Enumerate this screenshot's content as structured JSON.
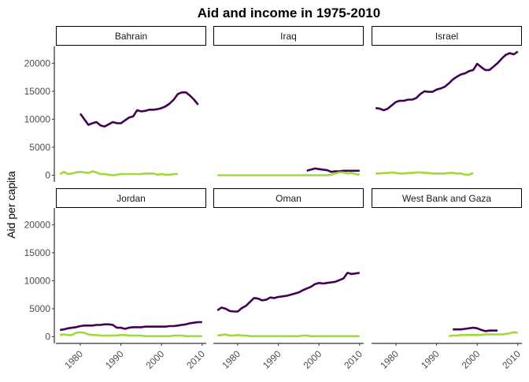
{
  "chart_data": {
    "type": "line",
    "title": "Aid and income in 1975-2010",
    "xlabel": "",
    "ylabel": "Aid per capita",
    "xlim": [
      1974,
      2011
    ],
    "ylim": [
      -1200,
      23000
    ],
    "x_ticks": [
      1980,
      1990,
      2000,
      2010
    ],
    "y_ticks": [
      0,
      5000,
      10000,
      15000,
      20000
    ],
    "grid": false,
    "legend": "none",
    "series_colors": [
      "#440154",
      "#a0da39"
    ],
    "panels": [
      {
        "name": "Bahrain",
        "series": [
          {
            "x": [
              1980,
              1981,
              1982,
              1983,
              1984,
              1985,
              1986,
              1987,
              1988,
              1989,
              1990,
              1991,
              1992,
              1993,
              1994,
              1995,
              1996,
              1997,
              1998,
              1999,
              2000,
              2001,
              2002,
              2003,
              2004,
              2005,
              2006,
              2007,
              2008,
              2009
            ],
            "values": [
              11000,
              10000,
              9000,
              9300,
              9500,
              8900,
              8700,
              9100,
              9500,
              9300,
              9300,
              9800,
              10300,
              10500,
              11600,
              11400,
              11500,
              11700,
              11700,
              11800,
              12000,
              12300,
              12800,
              13500,
              14500,
              14800,
              14800,
              14200,
              13500,
              12600
            ]
          },
          {
            "x": [
              1975,
              1976,
              1977,
              1978,
              1979,
              1980,
              1981,
              1982,
              1983,
              1984,
              1985,
              1986,
              1987,
              1988,
              1989,
              1990,
              1991,
              1992,
              1993,
              1994,
              1995,
              1996,
              1997,
              1998,
              1999,
              2000,
              2001,
              2002,
              2003,
              2004
            ],
            "values": [
              200,
              600,
              200,
              300,
              500,
              600,
              500,
              400,
              700,
              500,
              200,
              200,
              100,
              0,
              100,
              200,
              200,
              200,
              200,
              200,
              200,
              300,
              300,
              300,
              100,
              200,
              100,
              100,
              200,
              200
            ]
          }
        ]
      },
      {
        "name": "Iraq",
        "series": [
          {
            "x": [
              1997,
              1998,
              1999,
              2000,
              2001,
              2002,
              2003,
              2004,
              2005,
              2006,
              2007,
              2008,
              2009,
              2010
            ],
            "values": [
              800,
              1000,
              1200,
              1100,
              1000,
              900,
              600,
              700,
              700,
              800,
              800,
              800,
              800,
              800
            ]
          },
          {
            "x": [
              1975,
              1980,
              1985,
              1990,
              1995,
              2000,
              2002,
              2003,
              2004,
              2005,
              2006,
              2007,
              2008,
              2009,
              2010
            ],
            "values": [
              0,
              0,
              0,
              0,
              0,
              0,
              0,
              100,
              300,
              500,
              500,
              300,
              400,
              200,
              100
            ]
          }
        ]
      },
      {
        "name": "Israel",
        "series": [
          {
            "x": [
              1975,
              1976,
              1977,
              1978,
              1979,
              1980,
              1981,
              1982,
              1983,
              1984,
              1985,
              1986,
              1987,
              1988,
              1989,
              1990,
              1991,
              1992,
              1993,
              1994,
              1995,
              1996,
              1997,
              1998,
              1999,
              2000,
              2001,
              2002,
              2003,
              2004,
              2005,
              2006,
              2007,
              2008,
              2009,
              2010
            ],
            "values": [
              12000,
              11900,
              11600,
              11900,
              12500,
              13100,
              13300,
              13300,
              13500,
              13500,
              13800,
              14500,
              15000,
              14900,
              14900,
              15300,
              15500,
              15800,
              16400,
              17100,
              17600,
              18000,
              18200,
              18600,
              18800,
              19900,
              19300,
              18800,
              18800,
              19400,
              20000,
              20800,
              21500,
              21800,
              21600,
              22100
            ]
          },
          {
            "x": [
              1975,
              1976,
              1977,
              1978,
              1979,
              1980,
              1981,
              1982,
              1983,
              1984,
              1985,
              1986,
              1987,
              1988,
              1989,
              1990,
              1991,
              1992,
              1993,
              1994,
              1995,
              1996,
              1997,
              1998,
              1999
            ],
            "values": [
              300,
              300,
              400,
              400,
              500,
              400,
              300,
              300,
              400,
              400,
              500,
              500,
              400,
              400,
              300,
              300,
              300,
              300,
              400,
              400,
              300,
              300,
              100,
              100,
              400
            ]
          }
        ]
      },
      {
        "name": "Jordan",
        "series": [
          {
            "x": [
              1975,
              1976,
              1977,
              1978,
              1979,
              1980,
              1981,
              1982,
              1983,
              1984,
              1985,
              1986,
              1987,
              1988,
              1989,
              1990,
              1991,
              1992,
              1993,
              1994,
              1995,
              1996,
              1997,
              1998,
              1999,
              2000,
              2001,
              2002,
              2003,
              2004,
              2005,
              2006,
              2007,
              2008,
              2009,
              2010
            ],
            "values": [
              1200,
              1300,
              1500,
              1600,
              1700,
              1900,
              2000,
              2000,
              2000,
              2100,
              2100,
              2200,
              2200,
              2100,
              1600,
              1600,
              1400,
              1600,
              1700,
              1700,
              1700,
              1800,
              1800,
              1800,
              1800,
              1800,
              1800,
              1900,
              1900,
              2000,
              2100,
              2200,
              2400,
              2500,
              2600,
              2600
            ]
          },
          {
            "x": [
              1975,
              1976,
              1977,
              1978,
              1979,
              1980,
              1981,
              1982,
              1983,
              1984,
              1985,
              1986,
              1987,
              1988,
              1989,
              1990,
              1991,
              1992,
              1993,
              1994,
              1995,
              1996,
              1997,
              1998,
              1999,
              2000,
              2001,
              2002,
              2003,
              2004,
              2005,
              2006,
              2007,
              2008,
              2009,
              2010
            ],
            "values": [
              300,
              400,
              300,
              300,
              700,
              800,
              700,
              400,
              300,
              300,
              200,
              200,
              200,
              200,
              200,
              300,
              300,
              200,
              200,
              200,
              200,
              100,
              100,
              100,
              100,
              100,
              100,
              100,
              200,
              200,
              200,
              100,
              100,
              100,
              100,
              100
            ]
          }
        ]
      },
      {
        "name": "Oman",
        "series": [
          {
            "x": [
              1975,
              1976,
              1977,
              1978,
              1979,
              1980,
              1981,
              1982,
              1983,
              1984,
              1985,
              1986,
              1987,
              1988,
              1989,
              1990,
              1991,
              1992,
              1993,
              1994,
              1995,
              1996,
              1997,
              1998,
              1999,
              2000,
              2001,
              2002,
              2003,
              2004,
              2005,
              2006,
              2007,
              2008,
              2009,
              2010
            ],
            "values": [
              4700,
              5200,
              5000,
              4600,
              4500,
              4500,
              5100,
              5500,
              6200,
              6900,
              6800,
              6500,
              6600,
              7000,
              6900,
              7100,
              7200,
              7300,
              7500,
              7700,
              7900,
              8300,
              8600,
              8900,
              9400,
              9600,
              9500,
              9600,
              9700,
              9800,
              10100,
              10400,
              11400,
              11200,
              11300,
              11400
            ]
          },
          {
            "x": [
              1975,
              1976,
              1977,
              1978,
              1979,
              1980,
              1981,
              1982,
              1983,
              1984,
              1985,
              1986,
              1987,
              1988,
              1989,
              1990,
              1991,
              1992,
              1993,
              1994,
              1995,
              1996,
              1997,
              1998,
              1999,
              2000,
              2001,
              2002,
              2003,
              2004,
              2005,
              2006,
              2007,
              2008,
              2009,
              2010
            ],
            "values": [
              200,
              300,
              400,
              200,
              200,
              300,
              200,
              200,
              100,
              100,
              100,
              100,
              100,
              100,
              100,
              100,
              100,
              100,
              100,
              100,
              100,
              200,
              200,
              100,
              100,
              100,
              100,
              100,
              100,
              100,
              100,
              100,
              100,
              100,
              100,
              100
            ]
          }
        ]
      },
      {
        "name": "West Bank and Gaza",
        "series": [
          {
            "x": [
              1994,
              1995,
              1996,
              1997,
              1998,
              1999,
              2000,
              2001,
              2002,
              2003,
              2004,
              2005
            ],
            "values": [
              1300,
              1300,
              1300,
              1400,
              1500,
              1600,
              1500,
              1200,
              1000,
              1100,
              1100,
              1100
            ]
          },
          {
            "x": [
              1993,
              1994,
              1995,
              1996,
              1997,
              1998,
              1999,
              2000,
              2001,
              2002,
              2003,
              2004,
              2005,
              2006,
              2007,
              2008,
              2009,
              2010
            ],
            "values": [
              100,
              200,
              200,
              300,
              300,
              300,
              300,
              300,
              300,
              400,
              400,
              400,
              400,
              400,
              500,
              600,
              800,
              700
            ]
          }
        ]
      }
    ]
  }
}
